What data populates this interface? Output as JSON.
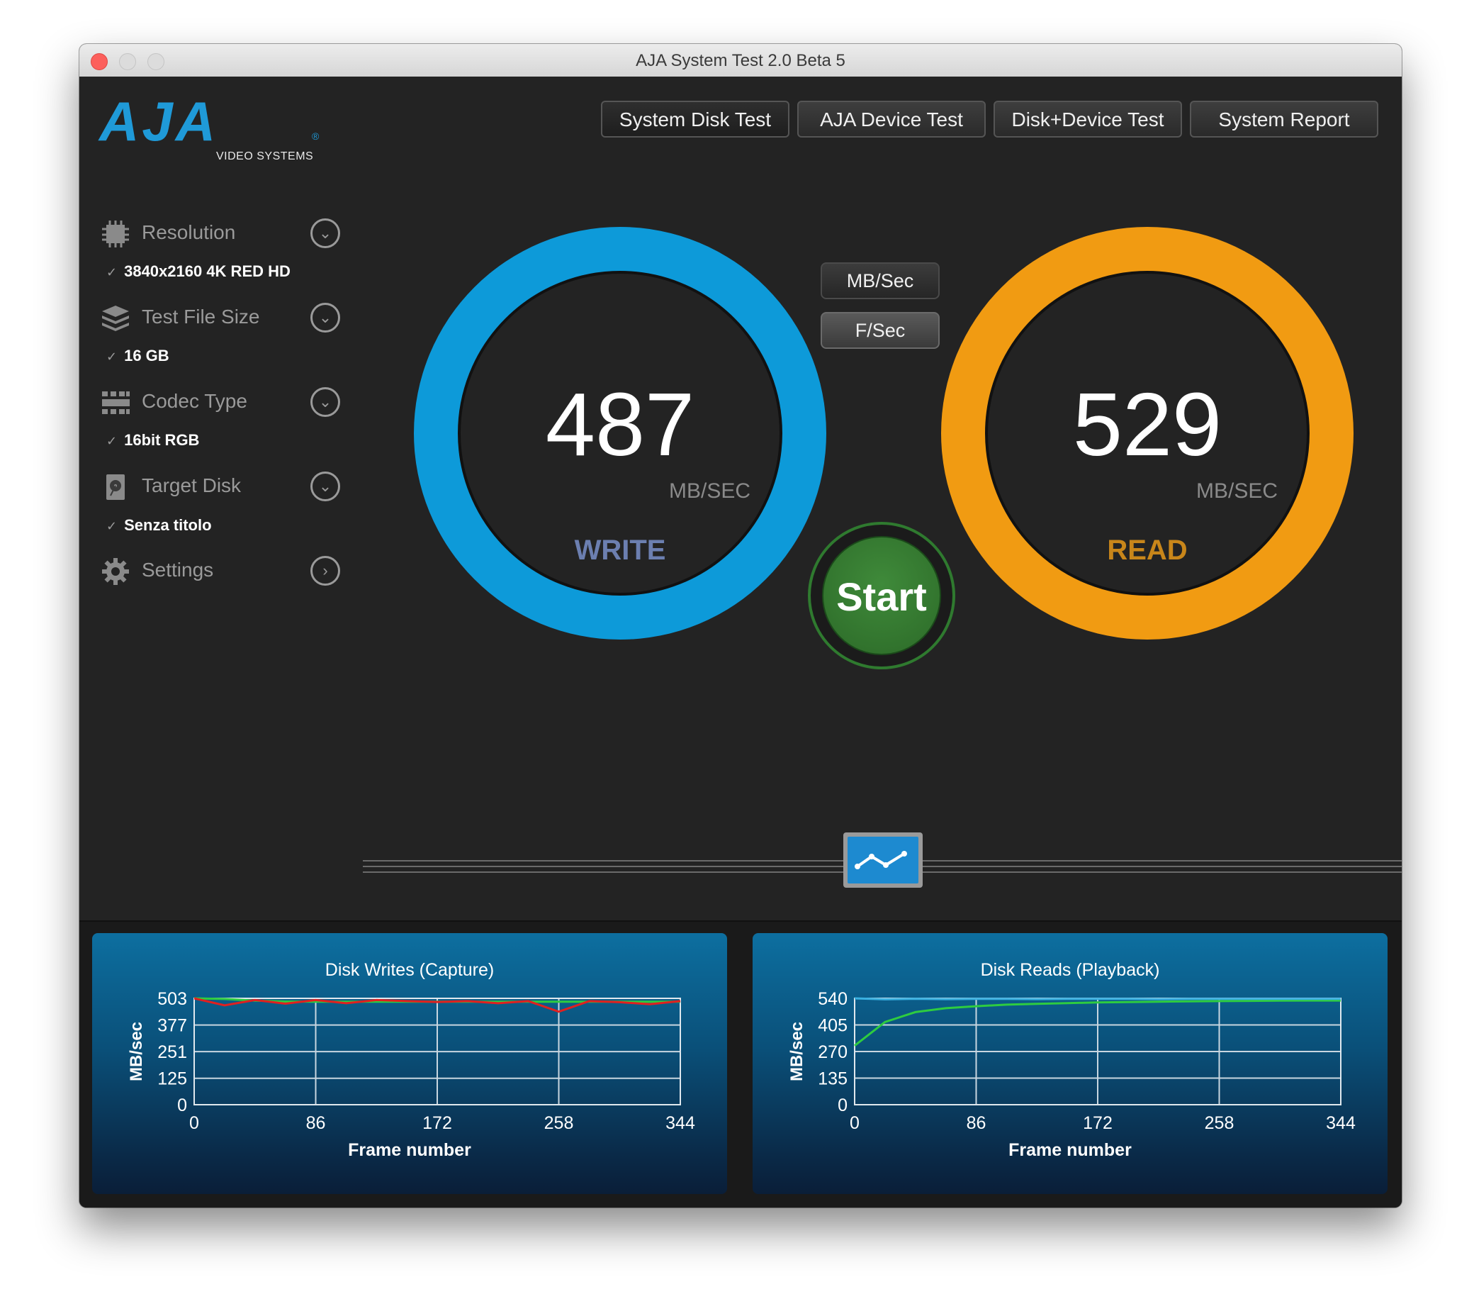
{
  "window": {
    "title": "AJA System Test 2.0 Beta 5"
  },
  "logo": {
    "word": "AJA",
    "sub": "VIDEO SYSTEMS",
    "reg": "®"
  },
  "sidebar": {
    "items": [
      {
        "label": "Resolution",
        "value": "3840x2160 4K RED HD",
        "icon": "chip-icon"
      },
      {
        "label": "Test File Size",
        "value": "16 GB",
        "icon": "stack-icon"
      },
      {
        "label": "Codec Type",
        "value": "16bit RGB",
        "icon": "film-icon"
      },
      {
        "label": "Target Disk",
        "value": "Senza titolo",
        "icon": "disk-icon"
      },
      {
        "label": "Settings",
        "icon": "gear-icon"
      }
    ],
    "check": "✓"
  },
  "tabs": [
    {
      "label": "System Disk Test"
    },
    {
      "label": "AJA Device Test"
    },
    {
      "label": "Disk+Device Test"
    },
    {
      "label": "System Report"
    }
  ],
  "units": {
    "mb": "MB/Sec",
    "fps": "F/Sec"
  },
  "write": {
    "value": "487",
    "unit": "MB/SEC",
    "label": "WRITE",
    "color": "#0d9ad9"
  },
  "read": {
    "value": "529",
    "unit": "MB/SEC",
    "label": "READ",
    "color": "#f19b12"
  },
  "start": {
    "label": "Start"
  },
  "chart_data": [
    {
      "type": "line",
      "title": "Disk Writes (Capture)",
      "xlabel": "Frame number",
      "ylabel": "MB/sec",
      "xticks": [
        0,
        86,
        172,
        258,
        344
      ],
      "yticks": [
        0,
        125,
        251,
        377,
        503
      ],
      "xlim": [
        0,
        344
      ],
      "ylim": [
        0,
        503
      ],
      "grid": true,
      "series": [
        {
          "color": "#2ecc40",
          "values": [
            503,
            500,
            492,
            488,
            487,
            487,
            487,
            487,
            487,
            487,
            487,
            487,
            487,
            487,
            487,
            487,
            487
          ]
        },
        {
          "color": "#e02020",
          "values": [
            503,
            470,
            495,
            478,
            495,
            480,
            495,
            490,
            486,
            490,
            480,
            490,
            440,
            490,
            485,
            475,
            490
          ]
        }
      ]
    },
    {
      "type": "line",
      "title": "Disk Reads (Playback)",
      "xlabel": "Frame number",
      "ylabel": "MB/sec",
      "xticks": [
        0,
        86,
        172,
        258,
        344
      ],
      "yticks": [
        0,
        135,
        270,
        405,
        540
      ],
      "xlim": [
        0,
        344
      ],
      "ylim": [
        0,
        540
      ],
      "grid": true,
      "series": [
        {
          "color": "#2ecc40",
          "values": [
            300,
            420,
            470,
            490,
            500,
            508,
            512,
            516,
            519,
            521,
            523,
            525,
            526,
            527,
            528,
            529,
            529
          ]
        },
        {
          "color": "#3ab0e0",
          "values": [
            540,
            535,
            538,
            536,
            537,
            537,
            536,
            537,
            537,
            537,
            536,
            537,
            537,
            537,
            537,
            537,
            537
          ]
        }
      ]
    }
  ]
}
